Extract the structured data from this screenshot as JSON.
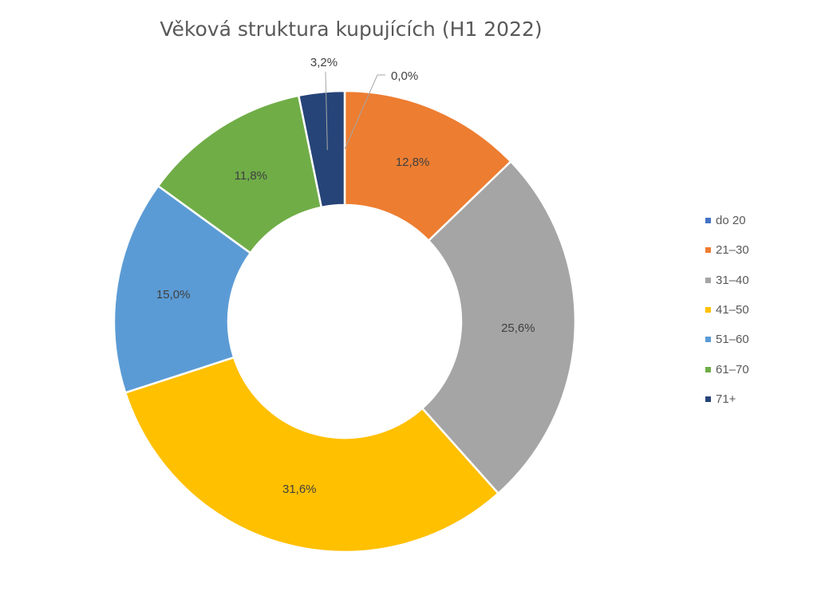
{
  "chart_data": {
    "type": "pie",
    "subtype": "doughnut",
    "title": "Věková struktura kupujících (H1 2022)",
    "categories": [
      "do 20",
      "21–30",
      "31–40",
      "41–50",
      "51–60",
      "61–70",
      "71+"
    ],
    "values": [
      0.0,
      12.8,
      25.6,
      31.6,
      15.0,
      11.8,
      3.2
    ],
    "labels": [
      "0,0%",
      "12,8%",
      "25,6%",
      "31,6%",
      "15,0%",
      "11,8%",
      "3,2%"
    ],
    "colors": [
      "#4472C4",
      "#ED7D31",
      "#A5A5A5",
      "#FFC000",
      "#5B9BD5",
      "#70AD47",
      "#264478"
    ],
    "legend_position": "right",
    "unit": "%"
  }
}
